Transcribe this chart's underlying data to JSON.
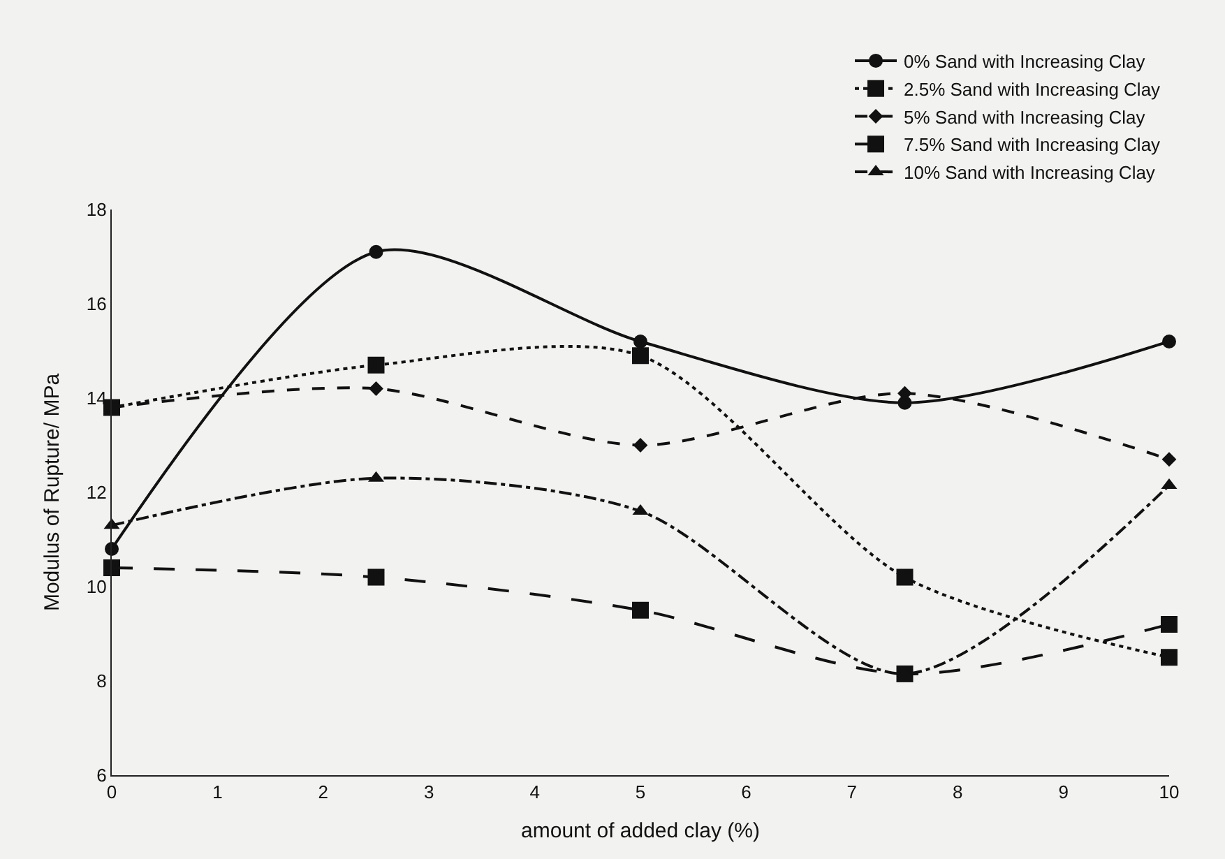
{
  "chart_data": {
    "type": "line",
    "xlabel": "amount of added clay (%)",
    "ylabel": "Modulus of Rupture/ MPa",
    "x": [
      0,
      2.5,
      5,
      7.5,
      10
    ],
    "xlim": [
      0,
      10
    ],
    "xticks": [
      0,
      1,
      2,
      3,
      4,
      5,
      6,
      7,
      8,
      9,
      10
    ],
    "ylim": [
      6,
      18
    ],
    "yticks": [
      6,
      8,
      10,
      12,
      14,
      16,
      18
    ],
    "grid": false,
    "legend": "top right",
    "series": [
      {
        "name": "0% Sand with Increasing Clay",
        "color": "#111111",
        "marker": "circle",
        "line_style": "solid",
        "values": [
          10.8,
          17.1,
          15.2,
          13.9,
          15.2
        ]
      },
      {
        "name": "2.5% Sand with Increasing Clay",
        "color": "#111111",
        "marker": "square",
        "line_style": "dotted",
        "values": [
          13.8,
          14.7,
          14.9,
          10.2,
          8.5
        ]
      },
      {
        "name": "5% Sand with Increasing Clay",
        "color": "#111111",
        "marker": "diamond",
        "line_style": "dashed",
        "values": [
          13.8,
          14.2,
          13.0,
          14.1,
          12.7
        ]
      },
      {
        "name": "7.5% Sand with Increasing Clay",
        "color": "#111111",
        "marker": "square",
        "line_style": "longdash",
        "values": [
          10.4,
          10.2,
          9.5,
          8.15,
          9.2
        ]
      },
      {
        "name": "10% Sand with Increasing Clay",
        "color": "#111111",
        "marker": "triangle",
        "line_style": "dashdot",
        "values": [
          11.3,
          12.3,
          11.6,
          8.15,
          12.15
        ]
      }
    ]
  }
}
